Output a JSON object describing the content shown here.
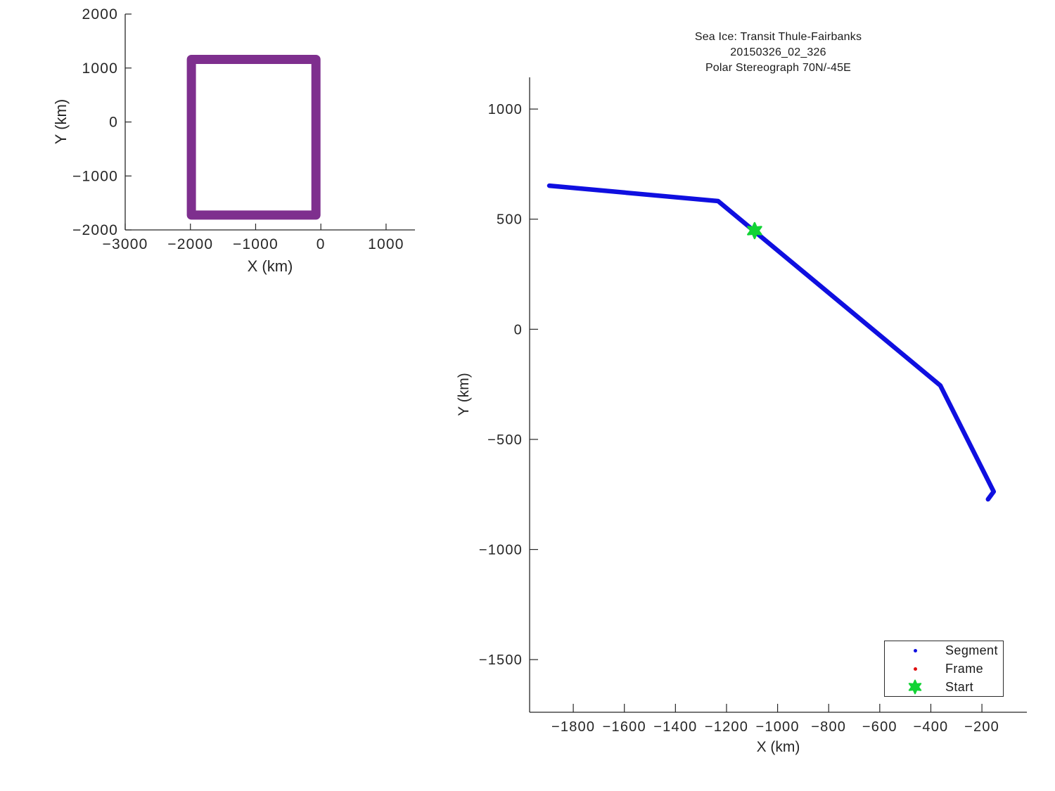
{
  "chart_data": [
    {
      "type": "line",
      "name": "overview-map-boundary",
      "title": "",
      "xlabel": "X (km)",
      "ylabel": "Y (km)",
      "xlim": [
        -3000,
        1443
      ],
      "ylim": [
        -2000,
        2000
      ],
      "xticks": [
        -3000,
        -2000,
        -1000,
        0,
        1000
      ],
      "yticks": [
        -2000,
        -1000,
        0,
        1000,
        2000
      ],
      "grid": false,
      "series": [
        {
          "name": "map-boundary",
          "color": "#7E2F8E",
          "line_width": 13,
          "points": [
            [
              -1985,
              1160
            ],
            [
              -75,
              1160
            ],
            [
              -75,
              -1725
            ],
            [
              -1985,
              -1725
            ],
            [
              -1985,
              1160
            ]
          ]
        }
      ]
    },
    {
      "type": "line",
      "name": "transit-track",
      "title": "Sea Ice: Transit Thule-Fairbanks",
      "subtitle1": "20150326_02_326",
      "subtitle2": "Polar Stereograph 70N/-45E",
      "xlabel": "X (km)",
      "ylabel": "Y (km)",
      "xlim": [
        -1971,
        -24
      ],
      "ylim": [
        -1739,
        1144
      ],
      "xticks": [
        -1800,
        -1600,
        -1400,
        -1200,
        -1000,
        -800,
        -600,
        -400,
        -200
      ],
      "yticks": [
        -1500,
        -1000,
        -500,
        0,
        500,
        1000
      ],
      "grid": false,
      "series": [
        {
          "name": "Segment",
          "color": "#0F0FE0",
          "line_width": 6.5,
          "points": [
            [
              -1894,
              652
            ],
            [
              -1233,
              582
            ],
            [
              -363,
              -255
            ],
            [
              -154,
              -737
            ],
            [
              -176,
              -772
            ]
          ]
        }
      ],
      "start_marker": {
        "x": -1090,
        "y": 448,
        "color": "#12D335",
        "shape": "hexagram"
      },
      "legend": {
        "position": "bottom-right",
        "entries": [
          {
            "label": "Segment",
            "marker": "dot",
            "color": "#0F0FE0"
          },
          {
            "label": "Frame",
            "marker": "dot",
            "color": "#E01010"
          },
          {
            "label": "Start",
            "marker": "hexagram",
            "color": "#12D335"
          }
        ]
      }
    }
  ]
}
